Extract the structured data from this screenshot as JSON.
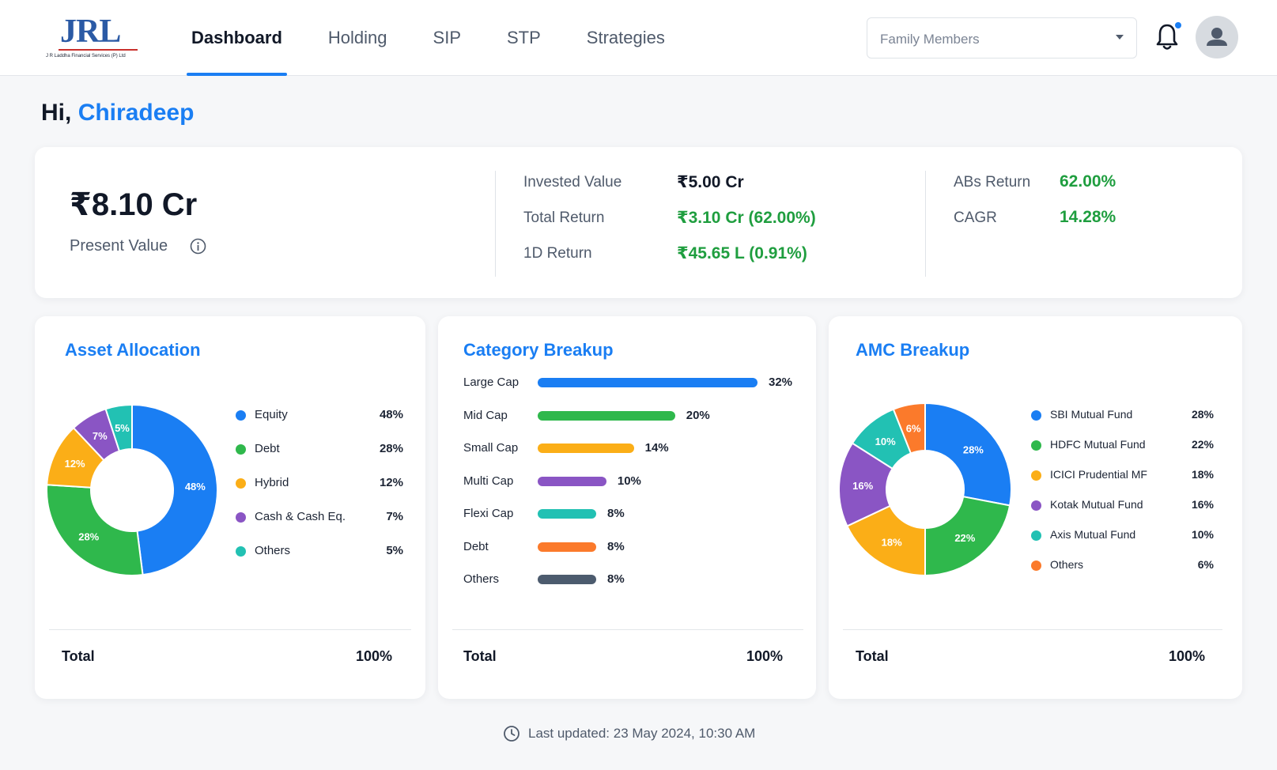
{
  "header": {
    "logo_text": "JRL",
    "logo_subtitle": "J R Laddha Financial Services (P) Ltd",
    "tabs": [
      {
        "label": "Dashboard",
        "active": true
      },
      {
        "label": "Holding",
        "active": false
      },
      {
        "label": "SIP",
        "active": false
      },
      {
        "label": "STP",
        "active": false
      },
      {
        "label": "Strategies",
        "active": false
      }
    ],
    "family_select_placeholder": "Family Members",
    "accent_color": "#1a7ef3"
  },
  "greeting": {
    "prefix": "Hi,",
    "name": "Chiradeep"
  },
  "summary": {
    "present_value": "₹8.10 Cr",
    "present_value_label": "Present Value",
    "invested_label": "Invested Value",
    "invested_value": "₹5.00 Cr",
    "total_return_label": "Total Return",
    "total_return_value": "₹3.10 Cr (62.00%)",
    "one_day_label": "1D Return",
    "one_day_value": "₹45.65 L (0.91%)",
    "abs_label": "ABs Return",
    "abs_value": "62.00%",
    "cagr_label": "CAGR",
    "cagr_value": "14.28%",
    "positive_color": "#1f9e3f"
  },
  "chart_data": [
    {
      "type": "pie",
      "title": "Asset Allocation",
      "categories": [
        "Equity",
        "Debt",
        "Hybrid",
        "Cash & Cash Eq.",
        "Others"
      ],
      "values": [
        48,
        28,
        12,
        7,
        5
      ],
      "value_labels": [
        "48%",
        "28%",
        "12%",
        "7%",
        "5%"
      ],
      "colors": [
        "#1a7ef3",
        "#2fb84c",
        "#fbae17",
        "#8a55c4",
        "#22c1b3"
      ],
      "total_label": "Total",
      "total_value": "100%"
    },
    {
      "type": "bar",
      "title": "Category Breakup",
      "categories": [
        "Large Cap",
        "Mid Cap",
        "Small Cap",
        "Multi Cap",
        "Flexi Cap",
        "Debt",
        "Others"
      ],
      "values": [
        32,
        20,
        14,
        10,
        8,
        8,
        8
      ],
      "value_labels": [
        "32%",
        "20%",
        "14%",
        "10%",
        "8%",
        "8%",
        "8%"
      ],
      "colors": [
        "#1a7ef3",
        "#2fb84c",
        "#fbae17",
        "#8a55c4",
        "#22c1b3",
        "#fb7a2b",
        "#4c5b6e"
      ],
      "total_label": "Total",
      "total_value": "100%"
    },
    {
      "type": "pie",
      "title": "AMC Breakup",
      "categories": [
        "SBI Mutual Fund",
        "HDFC Mutual Fund",
        "ICICI Prudential MF",
        "Kotak Mutual Fund",
        "Axis Mutual Fund",
        "Others"
      ],
      "values": [
        28,
        22,
        18,
        16,
        10,
        6
      ],
      "value_labels": [
        "28%",
        "22%",
        "18%",
        "16%",
        "10%",
        "6%"
      ],
      "colors": [
        "#1a7ef3",
        "#2fb84c",
        "#fbae17",
        "#8a55c4",
        "#22c1b3",
        "#fb7a2b"
      ],
      "total_label": "Total",
      "total_value": "100%"
    }
  ],
  "footer": {
    "last_updated": "Last updated: 23 May 2024, 10:30 AM"
  }
}
